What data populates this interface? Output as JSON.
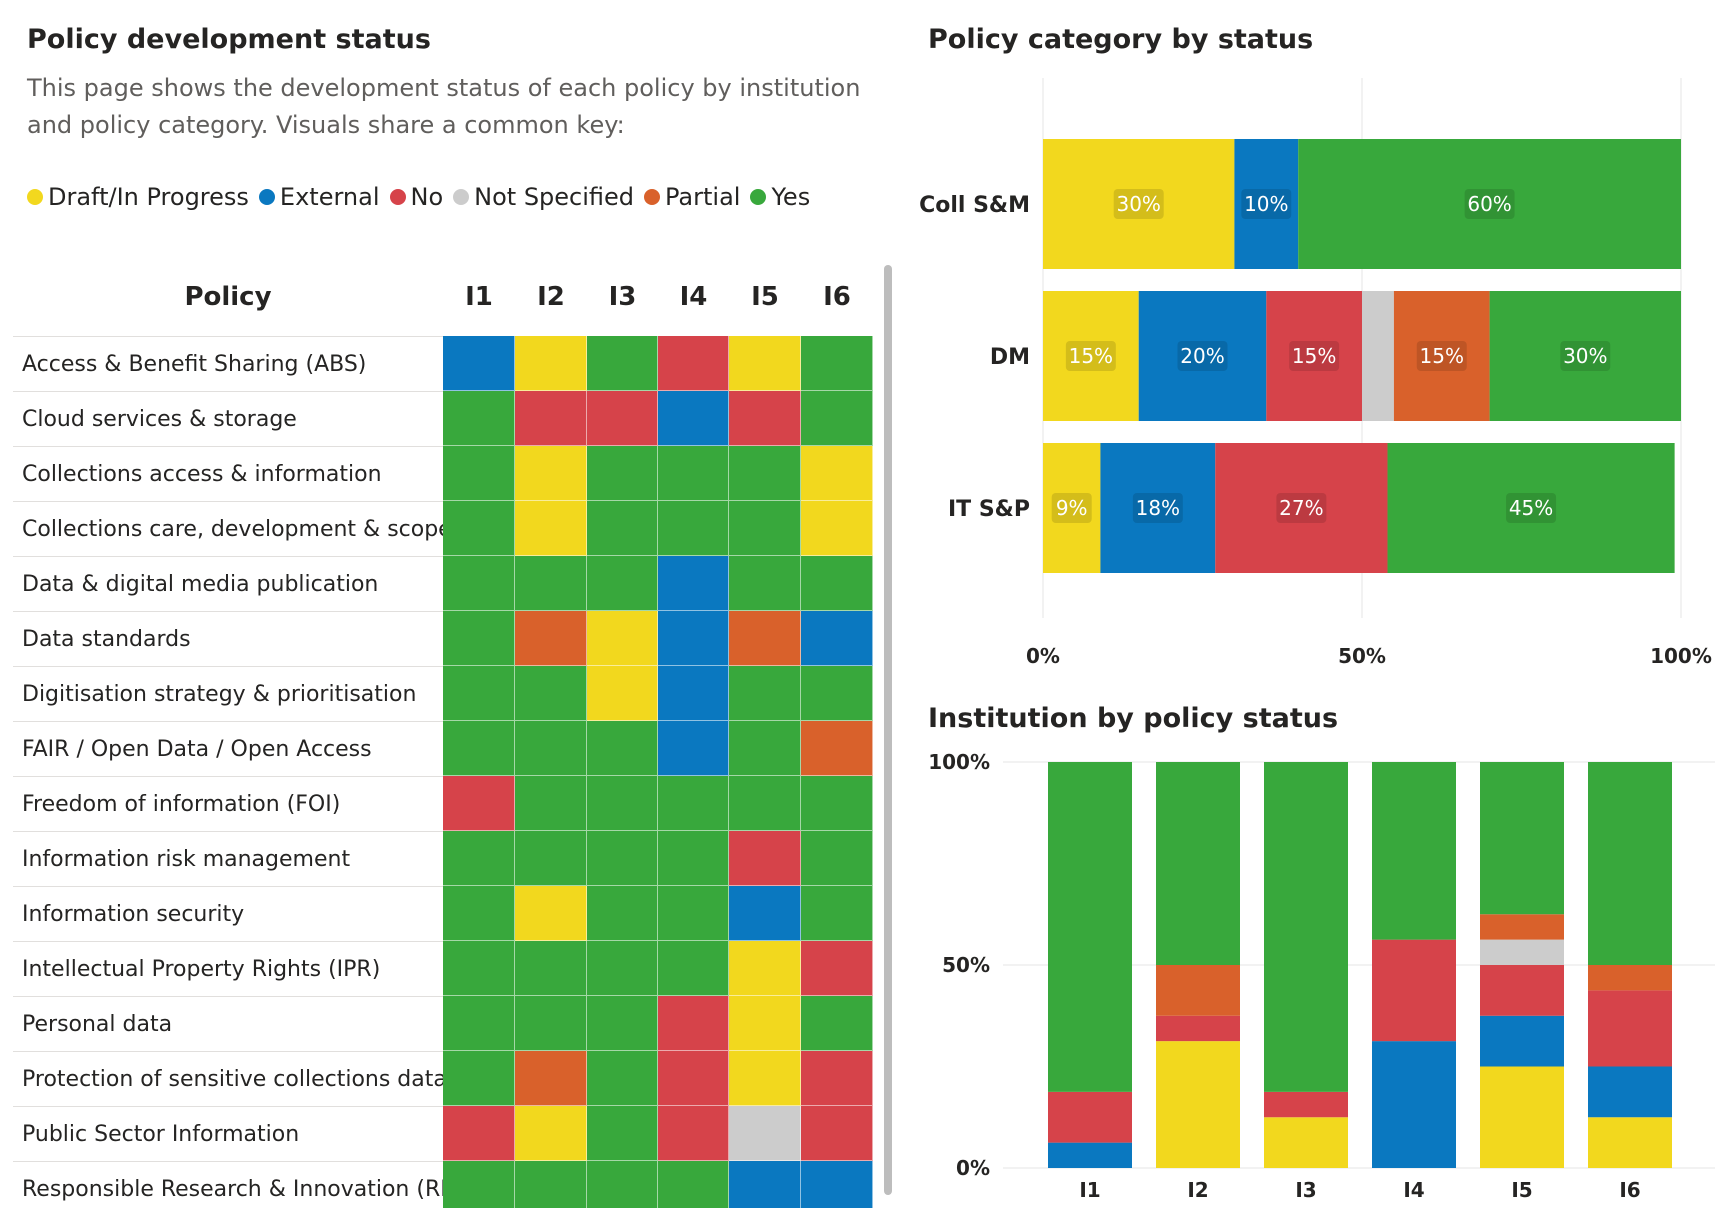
{
  "left_title": "Policy development status",
  "description": "This page shows the development status of each policy by institution and policy category. Visuals share a common key:",
  "colors": {
    "Draft/In Progress": "#f2d81e",
    "External": "#0a78c0",
    "No": "#d6434a",
    "Not Specified": "#cccccc",
    "Partial": "#d9612b",
    "Yes": "#38a83c"
  },
  "legend": [
    "Draft/In Progress",
    "External",
    "No",
    "Not Specified",
    "Partial",
    "Yes"
  ],
  "matrix": {
    "policy_header": "Policy",
    "institutions": [
      "I1",
      "I2",
      "I3",
      "I4",
      "I5",
      "I6"
    ],
    "rows": [
      {
        "policy": "Access & Benefit Sharing (ABS)",
        "statuses": [
          "External",
          "Draft/In Progress",
          "Yes",
          "No",
          "Draft/In Progress",
          "Yes"
        ]
      },
      {
        "policy": "Cloud services & storage",
        "statuses": [
          "Yes",
          "No",
          "No",
          "External",
          "No",
          "Yes"
        ]
      },
      {
        "policy": "Collections access & information",
        "statuses": [
          "Yes",
          "Draft/In Progress",
          "Yes",
          "Yes",
          "Yes",
          "Draft/In Progress"
        ]
      },
      {
        "policy": "Collections care, development & scope",
        "statuses": [
          "Yes",
          "Draft/In Progress",
          "Yes",
          "Yes",
          "Yes",
          "Draft/In Progress"
        ]
      },
      {
        "policy": "Data & digital media publication",
        "statuses": [
          "Yes",
          "Yes",
          "Yes",
          "External",
          "Yes",
          "Yes"
        ]
      },
      {
        "policy": "Data standards",
        "statuses": [
          "Yes",
          "Partial",
          "Draft/In Progress",
          "External",
          "Partial",
          "External"
        ]
      },
      {
        "policy": "Digitisation strategy & prioritisation",
        "statuses": [
          "Yes",
          "Yes",
          "Draft/In Progress",
          "External",
          "Yes",
          "Yes"
        ]
      },
      {
        "policy": "FAIR / Open Data / Open Access",
        "statuses": [
          "Yes",
          "Yes",
          "Yes",
          "External",
          "Yes",
          "Partial"
        ]
      },
      {
        "policy": "Freedom of information (FOI)",
        "statuses": [
          "No",
          "Yes",
          "Yes",
          "Yes",
          "Yes",
          "Yes"
        ]
      },
      {
        "policy": "Information risk management",
        "statuses": [
          "Yes",
          "Yes",
          "Yes",
          "Yes",
          "No",
          "Yes"
        ]
      },
      {
        "policy": "Information security",
        "statuses": [
          "Yes",
          "Draft/In Progress",
          "Yes",
          "Yes",
          "External",
          "Yes"
        ]
      },
      {
        "policy": "Intellectual Property Rights (IPR)",
        "statuses": [
          "Yes",
          "Yes",
          "Yes",
          "Yes",
          "Draft/In Progress",
          "No"
        ]
      },
      {
        "policy": "Personal data",
        "statuses": [
          "Yes",
          "Yes",
          "Yes",
          "No",
          "Draft/In Progress",
          "Yes"
        ]
      },
      {
        "policy": "Protection of sensitive collections data",
        "statuses": [
          "Yes",
          "Partial",
          "Yes",
          "No",
          "Draft/In Progress",
          "No"
        ]
      },
      {
        "policy": "Public Sector Information",
        "statuses": [
          "No",
          "Draft/In Progress",
          "Yes",
          "No",
          "Not Specified",
          "No"
        ]
      },
      {
        "policy": "Responsible Research & Innovation (RRI)",
        "statuses": [
          "Yes",
          "Yes",
          "Yes",
          "Yes",
          "External",
          "External"
        ]
      }
    ]
  },
  "chart_data": [
    {
      "type": "bar",
      "orientation": "horizontal",
      "stacked": "100%",
      "title": "Policy category by status",
      "categories": [
        "Coll S&M",
        "DM",
        "IT S&P"
      ],
      "series": [
        {
          "name": "Draft/In Progress",
          "values": [
            30,
            15,
            9
          ]
        },
        {
          "name": "External",
          "values": [
            10,
            20,
            18
          ]
        },
        {
          "name": "No",
          "values": [
            0,
            15,
            27
          ]
        },
        {
          "name": "Not Specified",
          "values": [
            0,
            5,
            0
          ]
        },
        {
          "name": "Partial",
          "values": [
            0,
            15,
            0
          ]
        },
        {
          "name": "Yes",
          "values": [
            60,
            30,
            45
          ]
        }
      ],
      "labels": [
        [
          "30%",
          "10%",
          "",
          "",
          "",
          "60%"
        ],
        [
          "15%",
          "20%",
          "15%",
          "",
          "15%",
          "30%"
        ],
        [
          "9%",
          "18%",
          "27%",
          "",
          "",
          "45%"
        ]
      ],
      "xticks": [
        "0%",
        "50%",
        "100%"
      ],
      "xlim": [
        0,
        100
      ]
    },
    {
      "type": "bar",
      "orientation": "vertical",
      "stacked": "100%",
      "title": "Institution by policy status",
      "categories": [
        "I1",
        "I2",
        "I3",
        "I4",
        "I5",
        "I6"
      ],
      "series": [
        {
          "name": "Draft/In Progress",
          "values": [
            0,
            31.25,
            12.5,
            0,
            25,
            12.5
          ]
        },
        {
          "name": "External",
          "values": [
            6.25,
            0,
            0,
            31.25,
            12.5,
            12.5
          ]
        },
        {
          "name": "No",
          "values": [
            12.5,
            6.25,
            6.25,
            25,
            12.5,
            18.75
          ]
        },
        {
          "name": "Not Specified",
          "values": [
            0,
            0,
            0,
            0,
            6.25,
            0
          ]
        },
        {
          "name": "Partial",
          "values": [
            0,
            12.5,
            0,
            0,
            6.25,
            6.25
          ]
        },
        {
          "name": "Yes",
          "values": [
            81.25,
            50,
            81.25,
            43.75,
            37.5,
            50
          ]
        }
      ],
      "yticks": [
        "0%",
        "50%",
        "100%"
      ],
      "ylim": [
        0,
        100
      ]
    }
  ]
}
